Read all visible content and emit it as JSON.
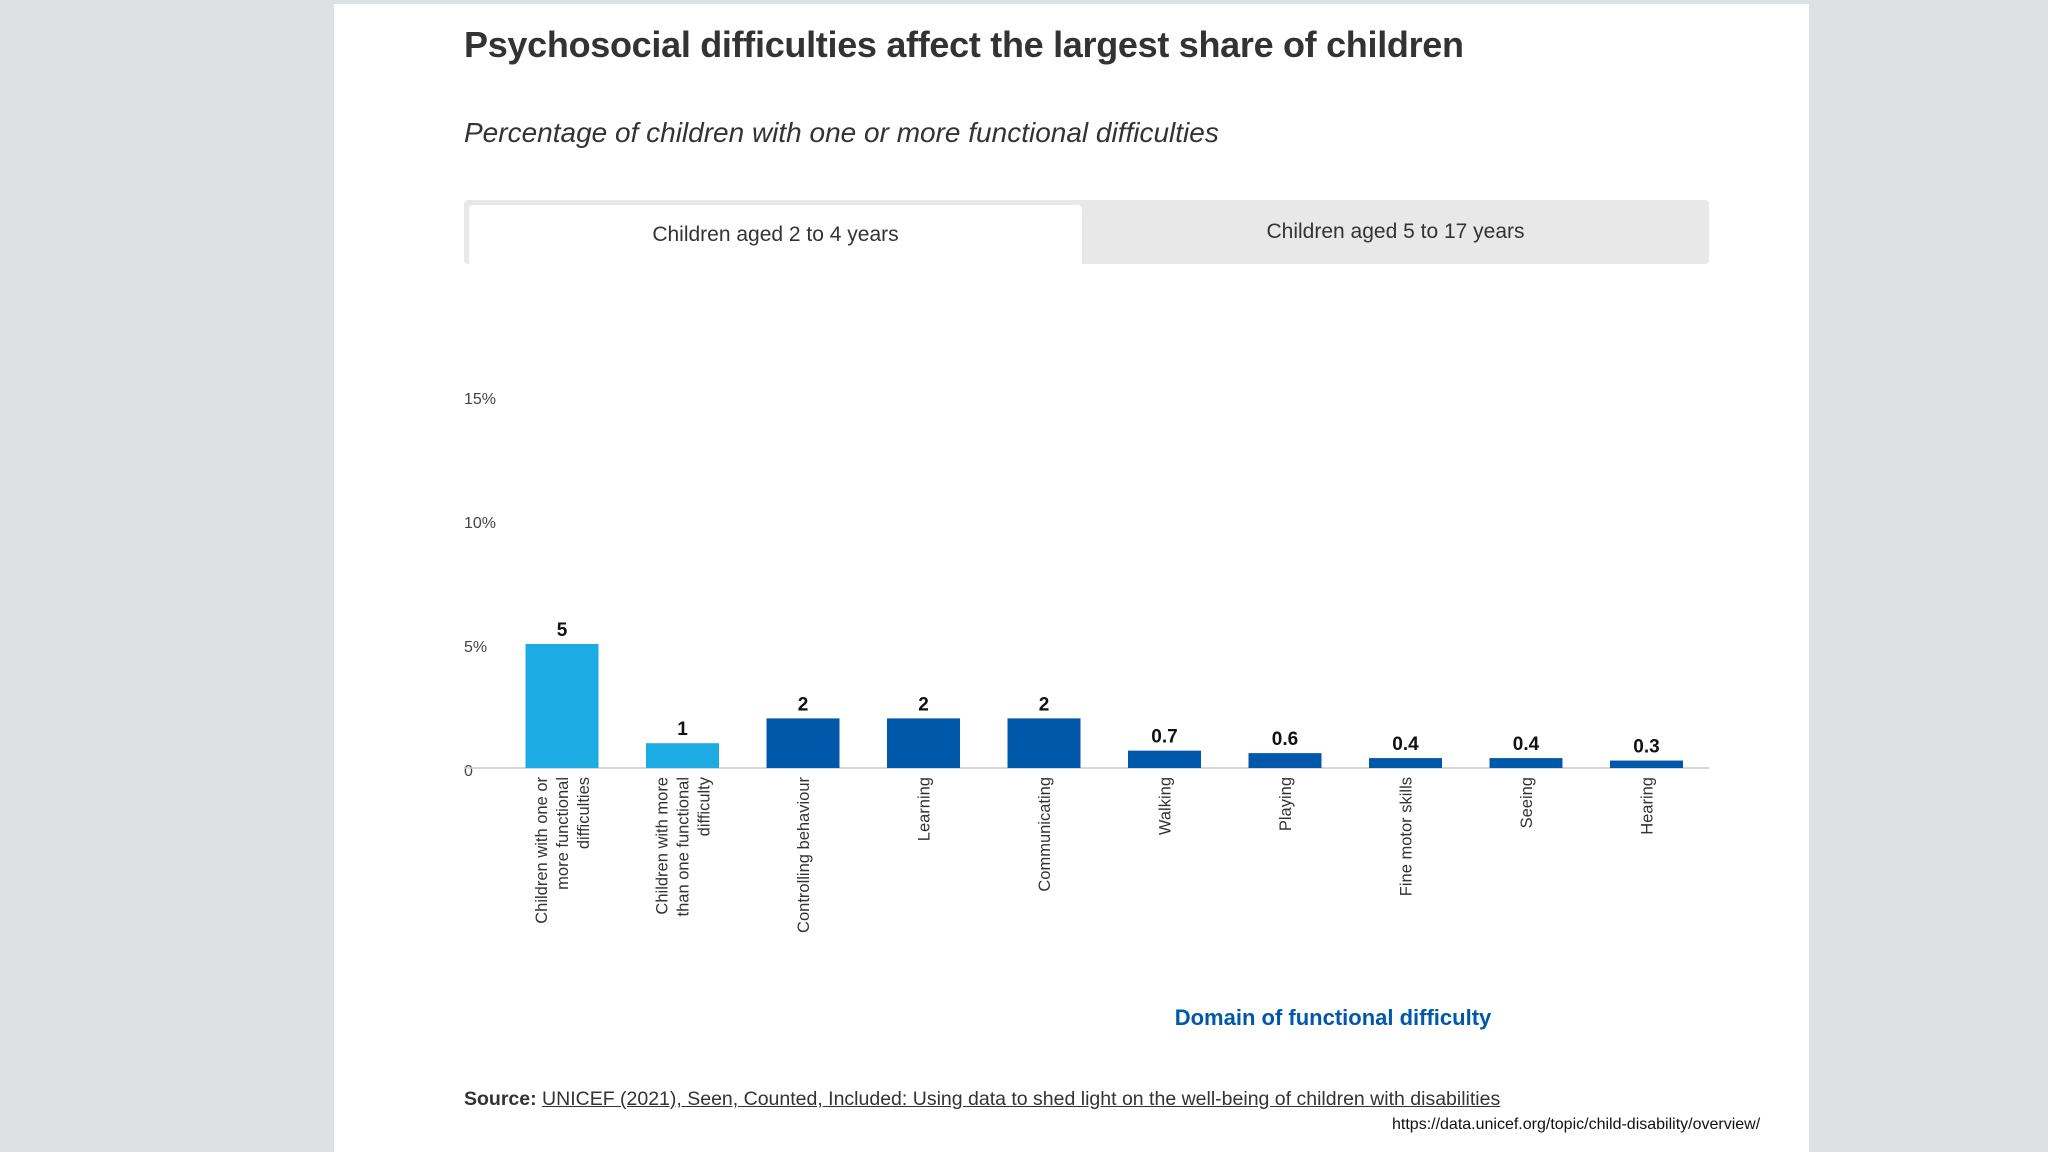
{
  "header": {
    "title": "Psychosocial difficulties affect the largest share of children",
    "subtitle": "Percentage of children with one or more functional difficulties"
  },
  "tabs": [
    {
      "label": "Children aged 2 to 4 years",
      "active": true
    },
    {
      "label": "Children aged 5 to 17 years",
      "active": false
    }
  ],
  "chart_data": {
    "type": "bar",
    "title": "",
    "xlabel": "Domain of functional difficulty",
    "ylabel": "",
    "ylim": [
      0,
      15
    ],
    "yticks": [
      {
        "value": 0,
        "label": "0"
      },
      {
        "value": 5,
        "label": "5%"
      },
      {
        "value": 10,
        "label": "10%"
      },
      {
        "value": 15,
        "label": "15%"
      }
    ],
    "grid": false,
    "categories": [
      [
        "Children with one or",
        "more functional",
        "difficulties"
      ],
      [
        "Children with more",
        "than one functional",
        "difficulty"
      ],
      [
        "Controlling behaviour"
      ],
      [
        "Learning"
      ],
      [
        "Communicating"
      ],
      [
        "Walking"
      ],
      [
        "Playing"
      ],
      [
        "Fine motor skills"
      ],
      [
        "Seeing"
      ],
      [
        "Hearing"
      ]
    ],
    "values": [
      5,
      1,
      2,
      2,
      2,
      0.7,
      0.6,
      0.4,
      0.4,
      0.3
    ],
    "value_labels": [
      "5",
      "1",
      "2",
      "2",
      "2",
      "0.7",
      "0.6",
      "0.4",
      "0.4",
      "0.3"
    ],
    "bar_colors": [
      "#1cabe2",
      "#1cabe2",
      "#0058ab",
      "#0058ab",
      "#0058ab",
      "#0058ab",
      "#0058ab",
      "#0058ab",
      "#0058ab",
      "#0058ab"
    ],
    "axis_title_color": "#0058ab"
  },
  "footer": {
    "source_label": "Source:",
    "source_text": "UNICEF (2021), Seen, Counted, Included: Using data to shed light on the well-being of children with disabilities",
    "url": "https://data.unicef.org/topic/child-disability/overview/"
  }
}
